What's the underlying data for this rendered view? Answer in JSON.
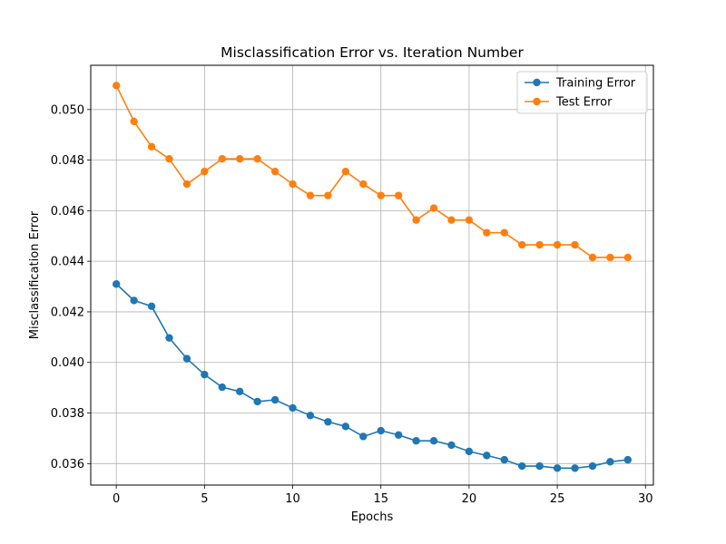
{
  "chart_data": {
    "type": "line",
    "title": "Misclassification Error vs. Iteration Number",
    "xlabel": "Epochs",
    "ylabel": "Misclassification Error",
    "xlim": [
      -1.45,
      30.45
    ],
    "ylim": [
      0.03515,
      0.05175
    ],
    "xticks": [
      0,
      5,
      10,
      15,
      20,
      25,
      30
    ],
    "xtick_labels": [
      "0",
      "5",
      "10",
      "15",
      "20",
      "25",
      "30"
    ],
    "yticks": [
      0.036,
      0.038,
      0.04,
      0.042,
      0.044,
      0.046,
      0.048,
      0.05
    ],
    "ytick_labels": [
      "0.036",
      "0.038",
      "0.040",
      "0.042",
      "0.044",
      "0.046",
      "0.048",
      "0.050"
    ],
    "grid": true,
    "legend_position": "top-right",
    "x": [
      0,
      1,
      2,
      3,
      4,
      5,
      6,
      7,
      8,
      9,
      10,
      11,
      12,
      13,
      14,
      15,
      16,
      17,
      18,
      19,
      20,
      21,
      22,
      23,
      24,
      25,
      26,
      27,
      28,
      29
    ],
    "series": [
      {
        "name": "Training Error",
        "color": "#1f77b4",
        "marker": "circle",
        "values": [
          0.0431,
          0.04245,
          0.04222,
          0.04097,
          0.04015,
          0.03952,
          0.03902,
          0.03885,
          0.03845,
          0.03852,
          0.0382,
          0.0379,
          0.03765,
          0.03747,
          0.03707,
          0.0373,
          0.03713,
          0.0369,
          0.0369,
          0.03673,
          0.03648,
          0.03632,
          0.03615,
          0.0359,
          0.0359,
          0.03582,
          0.03582,
          0.0359,
          0.03607,
          0.03615
        ]
      },
      {
        "name": "Test Error",
        "color": "#ff7f0e",
        "marker": "circle",
        "values": [
          0.05095,
          0.04953,
          0.04853,
          0.04805,
          0.04705,
          0.04755,
          0.04805,
          0.04805,
          0.04805,
          0.04755,
          0.04705,
          0.0466,
          0.0466,
          0.04755,
          0.04705,
          0.0466,
          0.0466,
          0.04563,
          0.0461,
          0.04563,
          0.04563,
          0.04513,
          0.04513,
          0.04465,
          0.04465,
          0.04465,
          0.04465,
          0.04415,
          0.04415,
          0.04415
        ]
      }
    ]
  }
}
